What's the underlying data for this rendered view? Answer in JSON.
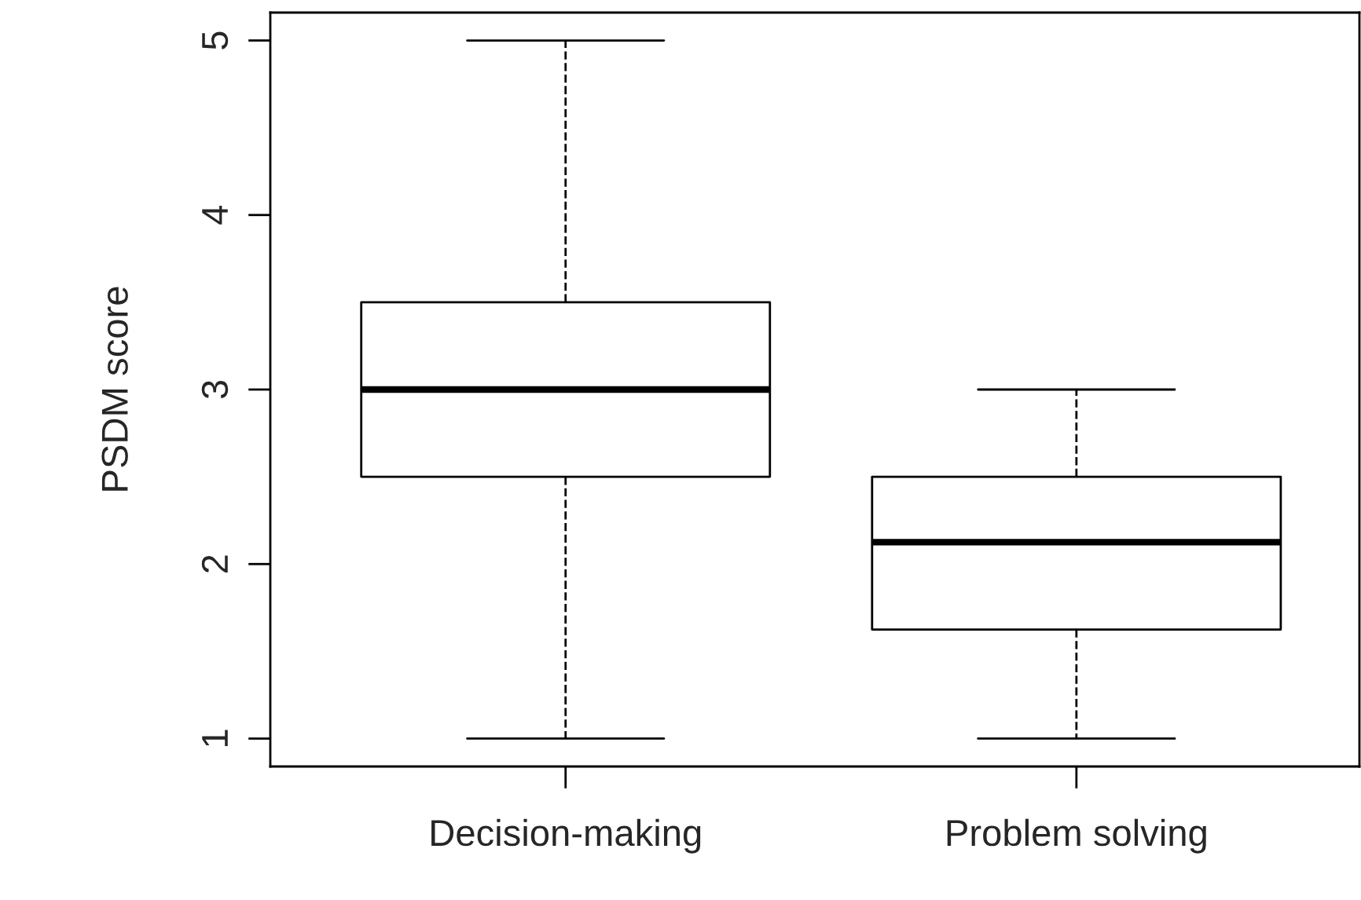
{
  "chart_data": {
    "type": "box",
    "ylabel": "PSDM score",
    "categories": [
      "Decision-making",
      "Problem solving"
    ],
    "boxes": [
      {
        "low": 1,
        "q1": 2.5,
        "median": 3,
        "q3": 3.5,
        "high": 5
      },
      {
        "low": 1,
        "q1": 1.625,
        "median": 2.125,
        "q3": 2.5,
        "high": 3
      }
    ],
    "ylim": [
      0.84,
      5.16
    ],
    "yticks": [
      1,
      2,
      3,
      4,
      5
    ],
    "grid": false,
    "line_style": "dashed"
  }
}
